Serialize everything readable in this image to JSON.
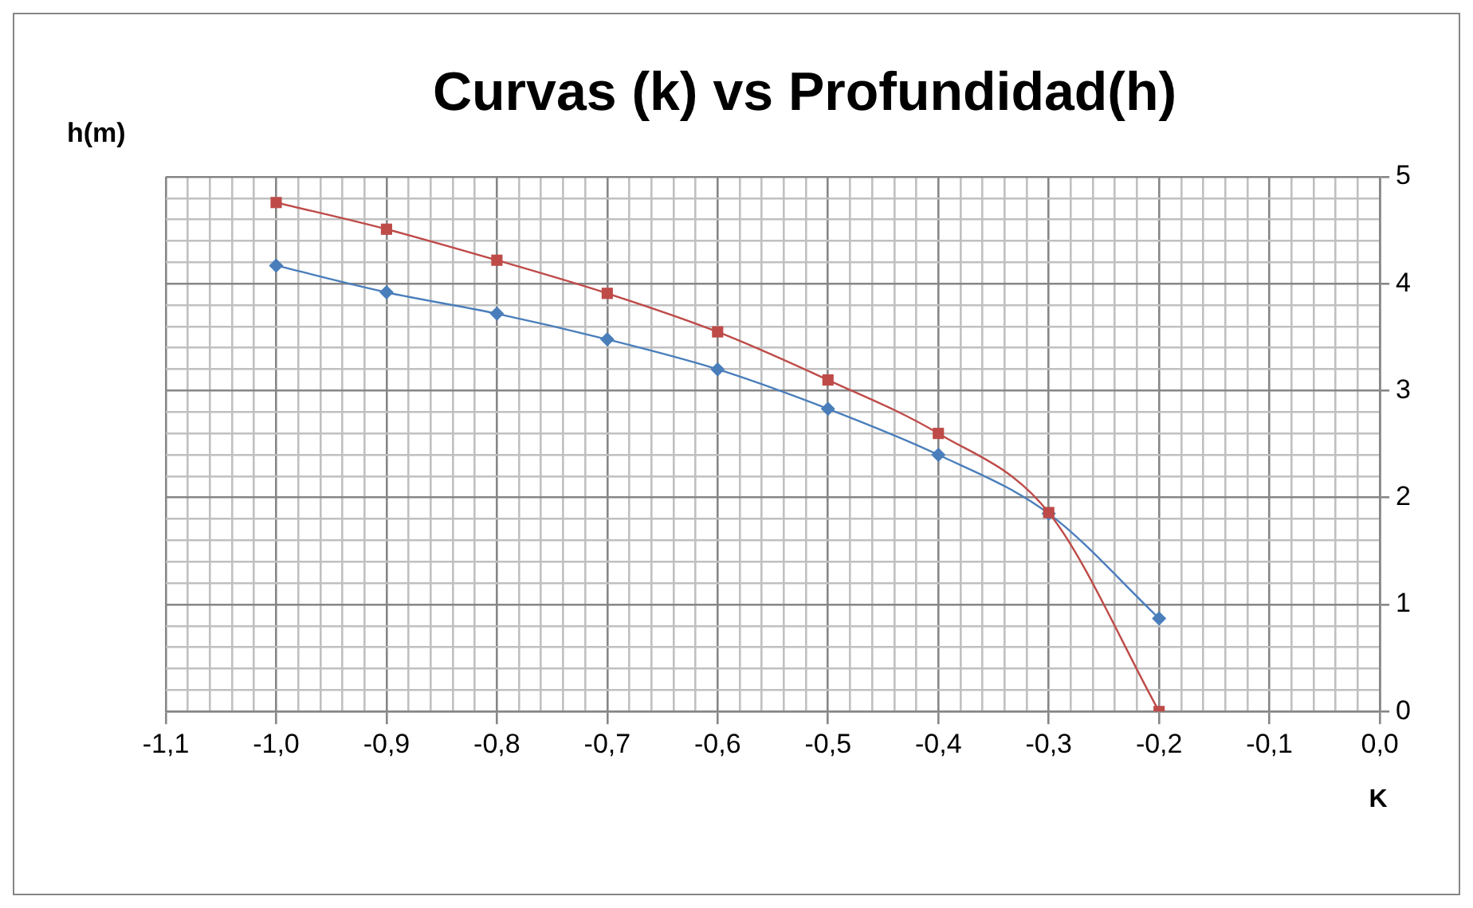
{
  "chart_data": {
    "type": "line",
    "title": "Curvas (k) vs Profundidad(h)",
    "xlabel": "K",
    "ylabel": "h(m)",
    "x": [
      -1.0,
      -0.9,
      -0.8,
      -0.7,
      -0.6,
      -0.5,
      -0.4,
      -0.3,
      -0.2
    ],
    "series": [
      {
        "color": "#4a7ebb",
        "marker": "diamond",
        "values": [
          4.17,
          3.92,
          3.72,
          3.48,
          3.2,
          2.83,
          2.4,
          1.85,
          0.87
        ]
      },
      {
        "color": "#be4b48",
        "marker": "square",
        "values": [
          4.76,
          4.51,
          4.22,
          3.91,
          3.55,
          3.1,
          2.6,
          1.86,
          0
        ]
      }
    ],
    "xlim": [
      -1.1,
      0
    ],
    "ylim": [
      0,
      5
    ],
    "xticks": [
      {
        "value": -1.1,
        "label": "-1,1"
      },
      {
        "value": -1.08,
        "label": null
      },
      {
        "value": -1.06,
        "label": null
      },
      {
        "value": -1.04,
        "label": null
      },
      {
        "value": -1.02,
        "label": null
      },
      {
        "value": -1.0,
        "label": "-1,0"
      },
      {
        "value": -0.98,
        "label": null
      },
      {
        "value": -0.96,
        "label": null
      },
      {
        "value": -0.94,
        "label": null
      },
      {
        "value": -0.92,
        "label": null
      },
      {
        "value": -0.9,
        "label": "-0,9"
      },
      {
        "value": -0.88,
        "label": null
      },
      {
        "value": -0.86,
        "label": null
      },
      {
        "value": -0.84,
        "label": null
      },
      {
        "value": -0.82,
        "label": null
      },
      {
        "value": -0.8,
        "label": "-0,8"
      },
      {
        "value": -0.78,
        "label": null
      },
      {
        "value": -0.76,
        "label": null
      },
      {
        "value": -0.74,
        "label": null
      },
      {
        "value": -0.72,
        "label": null
      },
      {
        "value": -0.7,
        "label": "-0,7"
      },
      {
        "value": -0.68,
        "label": null
      },
      {
        "value": -0.66,
        "label": null
      },
      {
        "value": -0.64,
        "label": null
      },
      {
        "value": -0.62,
        "label": null
      },
      {
        "value": -0.6,
        "label": "-0,6"
      },
      {
        "value": -0.58,
        "label": null
      },
      {
        "value": -0.56,
        "label": null
      },
      {
        "value": -0.54,
        "label": null
      },
      {
        "value": -0.52,
        "label": null
      },
      {
        "value": -0.5,
        "label": "-0,5"
      },
      {
        "value": -0.48,
        "label": null
      },
      {
        "value": -0.46,
        "label": null
      },
      {
        "value": -0.44,
        "label": null
      },
      {
        "value": -0.42,
        "label": null
      },
      {
        "value": -0.4,
        "label": "-0,4"
      },
      {
        "value": -0.38,
        "label": null
      },
      {
        "value": -0.36,
        "label": null
      },
      {
        "value": -0.34,
        "label": null
      },
      {
        "value": -0.32,
        "label": null
      },
      {
        "value": -0.3,
        "label": "-0,3"
      },
      {
        "value": -0.28,
        "label": null
      },
      {
        "value": -0.26,
        "label": null
      },
      {
        "value": -0.24,
        "label": null
      },
      {
        "value": -0.22,
        "label": null
      },
      {
        "value": -0.2,
        "label": "-0,2"
      },
      {
        "value": -0.18,
        "label": null
      },
      {
        "value": -0.16,
        "label": null
      },
      {
        "value": -0.14,
        "label": null
      },
      {
        "value": -0.12,
        "label": null
      },
      {
        "value": -0.1,
        "label": "-0,1"
      },
      {
        "value": -0.08,
        "label": null
      },
      {
        "value": -0.06,
        "label": null
      },
      {
        "value": -0.04,
        "label": null
      },
      {
        "value": -0.02,
        "label": null
      },
      {
        "value": 0,
        "label": "0,0"
      }
    ],
    "yticks": [
      0,
      {
        "value": 0.2,
        "label": null
      },
      {
        "value": 0.4,
        "label": null
      },
      {
        "value": 0.6,
        "label": null
      },
      {
        "value": 0.8,
        "label": null
      },
      1,
      {
        "value": 1.2,
        "label": null
      },
      {
        "value": 1.4,
        "label": null
      },
      {
        "value": 1.6,
        "label": null
      },
      {
        "value": 1.8,
        "label": null
      },
      2,
      {
        "value": 2.2,
        "label": null
      },
      {
        "value": 2.4,
        "label": null
      },
      {
        "value": 2.6,
        "label": null
      },
      {
        "value": 2.8,
        "label": null
      },
      3,
      {
        "value": 3.2,
        "label": null
      },
      {
        "value": 3.4,
        "label": null
      },
      {
        "value": 3.6,
        "label": null
      },
      {
        "value": 3.8,
        "label": null
      },
      4,
      {
        "value": 4.2,
        "label": null
      },
      {
        "value": 4.4,
        "label": null
      },
      {
        "value": 4.6,
        "label": null
      },
      {
        "value": 4.8,
        "label": null
      },
      5
    ],
    "grid": true,
    "legend": false
  }
}
